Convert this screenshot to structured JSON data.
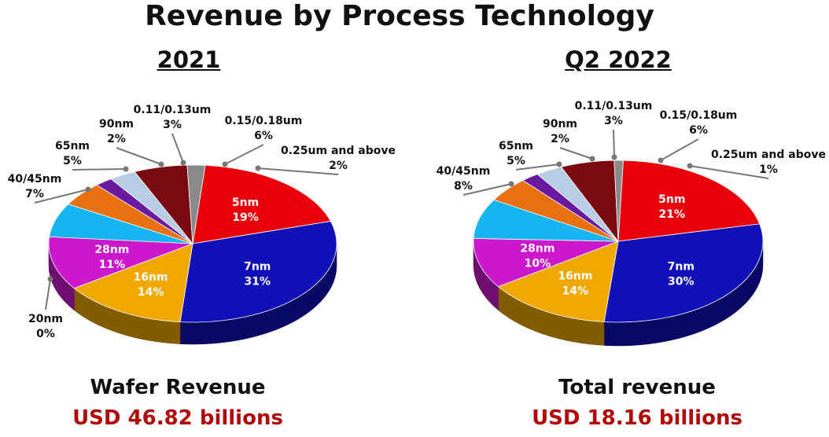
{
  "title": "Revenue by Process Technology",
  "colors": {
    "5nm": "#e8000a",
    "7nm": "#1111b8",
    "16nm": "#f0a800",
    "20nm": "#888888",
    "28nm": "#cc18cc",
    "40/45nm": "#16b4f0",
    "65nm": "#e87010",
    "90nm": "#6a1aa0",
    "0.11/0.13um": "#b8cce4",
    "0.15/0.18um": "#7a0a10",
    "0.25um and above": "#8a8a8a"
  },
  "chart_data": [
    {
      "type": "pie",
      "title": "2021",
      "caption_label": "Wafer Revenue",
      "caption_value": "USD 46.82 billions",
      "slices": [
        {
          "label": "5nm",
          "value": 19,
          "value_text": "19%"
        },
        {
          "label": "7nm",
          "value": 31,
          "value_text": "31%"
        },
        {
          "label": "16nm",
          "value": 14,
          "value_text": "14%"
        },
        {
          "label": "20nm",
          "value": 0,
          "value_text": "0%"
        },
        {
          "label": "28nm",
          "value": 11,
          "value_text": "11%"
        },
        {
          "label": "40/45nm",
          "value": 7,
          "value_text": "7%"
        },
        {
          "label": "65nm",
          "value": 5,
          "value_text": "5%"
        },
        {
          "label": "90nm",
          "value": 2,
          "value_text": "2%"
        },
        {
          "label": "0.11/0.13um",
          "value": 3,
          "value_text": "3%"
        },
        {
          "label": "0.15/0.18um",
          "value": 6,
          "value_text": "6%"
        },
        {
          "label": "0.25um and above",
          "value": 2,
          "value_text": "2%"
        }
      ]
    },
    {
      "type": "pie",
      "title": "Q2 2022",
      "caption_label": "Total revenue",
      "caption_value": "USD 18.16 billions",
      "slices": [
        {
          "label": "5nm",
          "value": 21,
          "value_text": "21%"
        },
        {
          "label": "7nm",
          "value": 30,
          "value_text": "30%"
        },
        {
          "label": "16nm",
          "value": 14,
          "value_text": "14%"
        },
        {
          "label": "28nm",
          "value": 10,
          "value_text": "10%"
        },
        {
          "label": "40/45nm",
          "value": 8,
          "value_text": "8%"
        },
        {
          "label": "65nm",
          "value": 5,
          "value_text": "5%"
        },
        {
          "label": "90nm",
          "value": 2,
          "value_text": "2%"
        },
        {
          "label": "0.11/0.13um",
          "value": 3,
          "value_text": "3%"
        },
        {
          "label": "0.15/0.18um",
          "value": 6,
          "value_text": "6%"
        },
        {
          "label": "0.25um and above",
          "value": 1,
          "value_text": "1%"
        }
      ]
    }
  ]
}
